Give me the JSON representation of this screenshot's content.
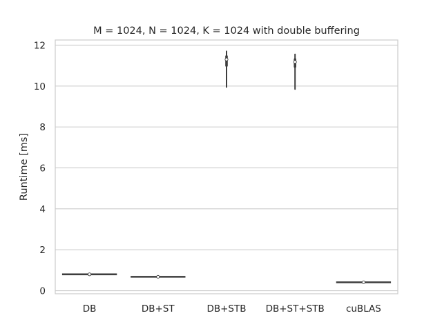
{
  "chart_data": {
    "type": "violin",
    "title": "M = 1024, N = 1024, K = 1024 with double buffering",
    "xlabel": "",
    "ylabel": "Runtime [ms]",
    "ylim": [
      -0.15,
      12.25
    ],
    "yticks": [
      0,
      2,
      4,
      6,
      8,
      10,
      12
    ],
    "grid": true,
    "categories": [
      "DB",
      "DB+ST",
      "DB+STB",
      "DB+ST+STB",
      "cuBLAS"
    ],
    "series": [
      {
        "category": "DB",
        "min": 0.79,
        "q1": 0.8,
        "median": 0.8,
        "q3": 0.81,
        "max": 0.82
      },
      {
        "category": "DB+ST",
        "min": 0.67,
        "q1": 0.68,
        "median": 0.68,
        "q3": 0.69,
        "max": 0.7
      },
      {
        "category": "DB+STB",
        "min": 9.95,
        "q1": 11.0,
        "median": 11.3,
        "q3": 11.45,
        "max": 11.7
      },
      {
        "category": "DB+ST+STB",
        "min": 9.85,
        "q1": 10.95,
        "median": 11.18,
        "q3": 11.3,
        "max": 11.55
      },
      {
        "category": "cuBLAS",
        "min": 0.39,
        "q1": 0.4,
        "median": 0.41,
        "q3": 0.42,
        "max": 0.43
      }
    ],
    "colors": {
      "violin": "#3d3d3d",
      "median_marker": "#ffffff",
      "grid": "#cccccc",
      "frame": "#cccccc",
      "text": "#262626"
    }
  }
}
